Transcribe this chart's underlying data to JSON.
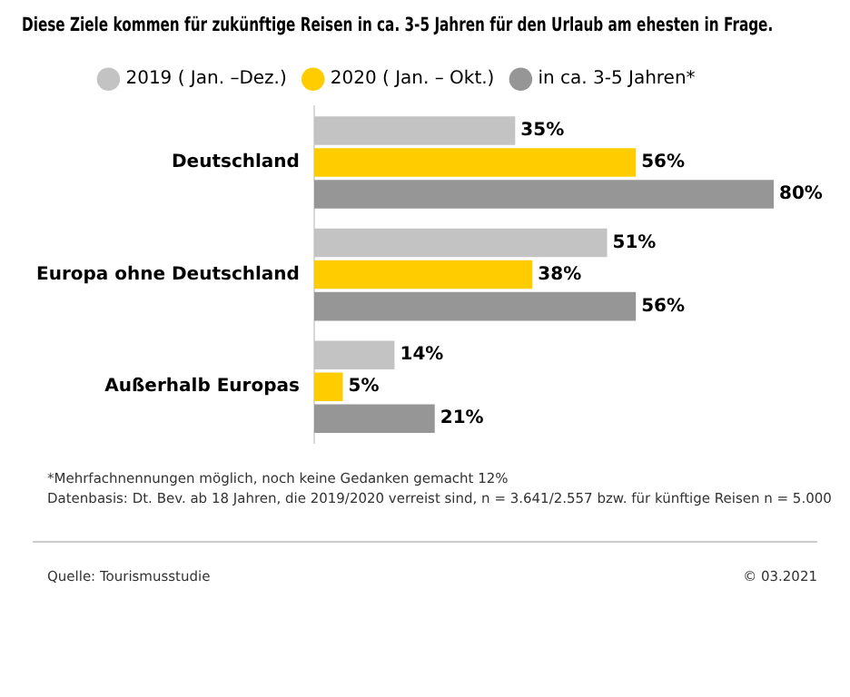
{
  "chart_data": {
    "type": "bar",
    "orientation": "horizontal",
    "title": "Diese Ziele kommen für zukünftige Reisen in ca. 3-5 Jahren für den Urlaub am ehesten in Frage.",
    "categories": [
      "Deutschland",
      "Europa ohne Deutschland",
      "Außerhalb Europas"
    ],
    "series": [
      {
        "name": "2019 ( Jan. –Dez.)",
        "color": "#c3c3c3",
        "values": [
          35,
          51,
          14
        ],
        "value_labels": [
          "35%",
          "51%",
          "14%"
        ]
      },
      {
        "name": "2020 ( Jan. – Okt.)",
        "color": "#ffcc00",
        "values": [
          56,
          38,
          5
        ],
        "value_labels": [
          "56%",
          "38%",
          "5%"
        ]
      },
      {
        "name": "in ca. 3-5 Jahren*",
        "color": "#969696",
        "values": [
          80,
          56,
          21
        ],
        "value_labels": [
          "80%",
          "56%",
          "21%"
        ]
      }
    ],
    "legend": "top",
    "grid": false,
    "annotations": [
      "*Mehrfachnennungen möglich, noch keine Gedanken gemacht 12%",
      "Datenbasis: Dt. Bev. ab 18 Jahren, die 2019/2020 verreist sind, n = 3.641/2.557 bzw. für künftige Reisen n = 5.000",
      "Quelle: Tourismusstudie",
      "© 03.2021"
    ]
  }
}
